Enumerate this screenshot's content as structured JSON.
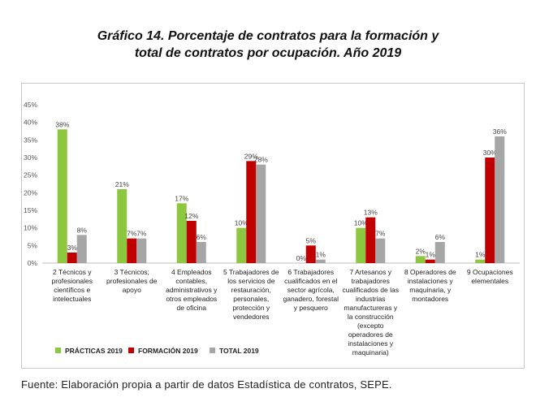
{
  "title_line1": "Gráfico 14. Porcentaje de contratos para la formación y",
  "title_line2": "total de contratos por ocupación. Año 2019",
  "source": "Fuente: Elaboración propia a partir de datos Estadística de contratos, SEPE.",
  "chart_data": {
    "type": "bar",
    "title": "Gráfico 14. Porcentaje de contratos para la formación y total de contratos por ocupación. Año 2019",
    "ylim": [
      0,
      45
    ],
    "yticks": [
      "0%",
      "5%",
      "10%",
      "15%",
      "20%",
      "25%",
      "30%",
      "35%",
      "40%",
      "45%"
    ],
    "grid": false,
    "legend_position": "bottom-left",
    "categories": [
      [
        "2 Técnicos y",
        "profesionales",
        "científicos e",
        "intelectuales"
      ],
      [
        "3 Técnicos;",
        "profesionales de",
        "apoyo"
      ],
      [
        "4 Empleados",
        "contables,",
        "administrativos y",
        "otros empleados",
        "de oficina"
      ],
      [
        "5 Trabajadores de",
        "los servicios de",
        "restauración,",
        "personales,",
        "protección y",
        "vendedores"
      ],
      [
        "6 Trabajadores",
        "cualificados en el",
        "sector agrícola,",
        "ganadero, forestal",
        "y pesquero"
      ],
      [
        "7 Artesanos y",
        "trabajadores",
        "cualificados de las",
        "industrias",
        "manufactureras y",
        "la construcción",
        "(excepto",
        "operadores de",
        "instalaciones y",
        "maquinaria)"
      ],
      [
        "8 Operadores de",
        "instalaciones y",
        "maquinaria, y",
        "montadores"
      ],
      [
        "9 Ocupaciones",
        "elementales"
      ]
    ],
    "series": [
      {
        "name": "PRÁCTICAS 2019",
        "color": "#8dc63f",
        "values": [
          38,
          21,
          17,
          10,
          0,
          10,
          2,
          1
        ],
        "labels": [
          "38%",
          "21%",
          "17%",
          "10%",
          "0%",
          "10%",
          "2%",
          "1%"
        ]
      },
      {
        "name": "FORMACIÓN 2019",
        "color": "#c00000",
        "values": [
          3,
          7,
          12,
          29,
          5,
          13,
          1,
          30
        ],
        "labels": [
          "3%",
          "7%",
          "12%",
          "29%",
          "5%",
          "13%",
          "1%",
          "30%"
        ]
      },
      {
        "name": "TOTAL 2019",
        "color": "#a6a6a6",
        "values": [
          8,
          7,
          6,
          28,
          1,
          7,
          6,
          36
        ],
        "labels": [
          "8%",
          "7%",
          "6%",
          "28%",
          "1%",
          "7%",
          "6%",
          "36%"
        ]
      }
    ]
  }
}
